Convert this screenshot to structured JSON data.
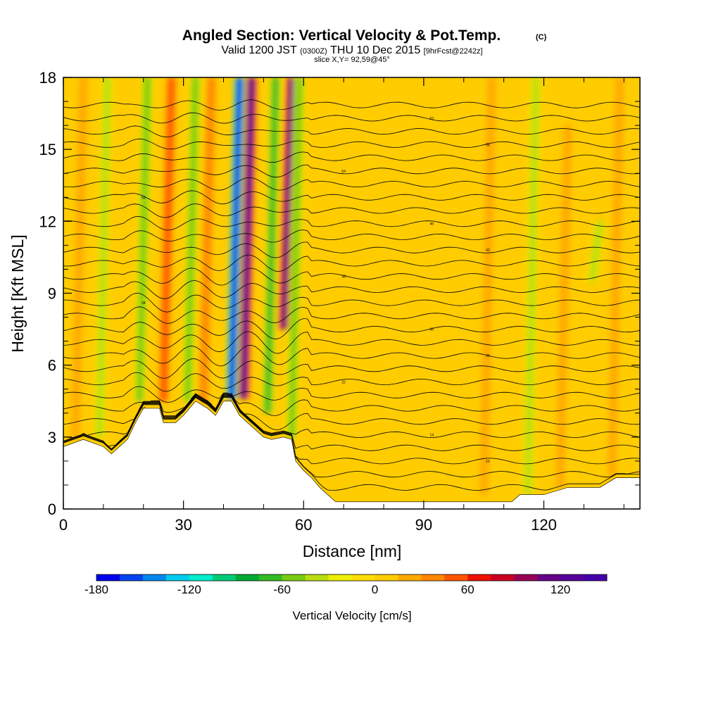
{
  "header": {
    "title": "Angled Section: Vertical Velocity & Pot.Temp.",
    "copyright": "(C)",
    "valid_prefix": "Valid 1200 JST",
    "valid_utc": "(0300Z)",
    "valid_date": "THU 10 Dec 2015",
    "forecast": "[9hrFcst@2242z]",
    "slice": "slice X,Y= 92,59@45°"
  },
  "chart_data": {
    "type": "heatmap",
    "xlabel": "Distance [nm]",
    "ylabel": "Height [Kft MSL]",
    "xlim": [
      0,
      144
    ],
    "ylim": [
      0,
      18
    ],
    "x_ticks": [
      "0",
      "30",
      "60",
      "90",
      "120"
    ],
    "x_tick_values": [
      0,
      30,
      60,
      90,
      120
    ],
    "y_ticks": [
      "0",
      "3",
      "6",
      "9",
      "12",
      "15",
      "18"
    ],
    "y_tick_values": [
      0,
      3,
      6,
      9,
      12,
      15,
      18
    ],
    "colorbar": {
      "label": "Vertical Velocity [cm/s]",
      "tick_labels": [
        "-180",
        "-120",
        "-60",
        "0",
        "60",
        "120"
      ],
      "tick_values": [
        -180,
        -120,
        -60,
        0,
        60,
        120
      ],
      "range": [
        -180,
        150
      ],
      "step": 15,
      "colors": [
        "#0000ee",
        "#0044ee",
        "#0088ee",
        "#00ccee",
        "#00eecc",
        "#00cc77",
        "#00aa33",
        "#33bb22",
        "#77cc11",
        "#bbdd11",
        "#eeee00",
        "#ffdd00",
        "#ffcc00",
        "#ffaa00",
        "#ff8800",
        "#ff5500",
        "#ee1100",
        "#cc0022",
        "#990055",
        "#660088",
        "#550099",
        "#4400aa"
      ]
    },
    "terrain_kft": [
      [
        0,
        2.6
      ],
      [
        5,
        2.9
      ],
      [
        10,
        2.6
      ],
      [
        12,
        2.3
      ],
      [
        14,
        2.6
      ],
      [
        16,
        2.9
      ],
      [
        18,
        3.6
      ],
      [
        20,
        4.2
      ],
      [
        24,
        4.2
      ],
      [
        25,
        3.6
      ],
      [
        26,
        3.6
      ],
      [
        28,
        3.6
      ],
      [
        30,
        3.9
      ],
      [
        33,
        4.5
      ],
      [
        36,
        4.2
      ],
      [
        38,
        3.9
      ],
      [
        40,
        4.5
      ],
      [
        42,
        4.5
      ],
      [
        44,
        3.9
      ],
      [
        46,
        3.6
      ],
      [
        48,
        3.3
      ],
      [
        50,
        3.0
      ],
      [
        52,
        2.9
      ],
      [
        55,
        3.0
      ],
      [
        57,
        2.9
      ],
      [
        58,
        2.0
      ],
      [
        60,
        1.6
      ],
      [
        62,
        1.3
      ],
      [
        64,
        0.9
      ],
      [
        66,
        0.6
      ],
      [
        68,
        0.3
      ],
      [
        70,
        0.3
      ],
      [
        80,
        0.3
      ],
      [
        90,
        0.3
      ],
      [
        100,
        0.3
      ],
      [
        112,
        0.3
      ],
      [
        114,
        0.6
      ],
      [
        120,
        0.6
      ],
      [
        126,
        0.9
      ],
      [
        134,
        0.9
      ],
      [
        138,
        1.3
      ],
      [
        144,
        1.3
      ]
    ],
    "updrafts": [
      {
        "x": 46,
        "z_low": 4.6,
        "z_high": 18,
        "peak": 120
      },
      {
        "x": 56,
        "z_low": 7.5,
        "z_high": 18,
        "peak": 110
      },
      {
        "x": 26,
        "z_low": 4.5,
        "z_high": 18,
        "peak": 45
      },
      {
        "x": 36,
        "z_low": 4.5,
        "z_high": 18,
        "peak": 40
      },
      {
        "x": 106,
        "z_low": 0.6,
        "z_high": 18,
        "peak": 25
      },
      {
        "x": 125,
        "z_low": 0.9,
        "z_high": 16,
        "peak": 20
      },
      {
        "x": 138,
        "z_low": 1.3,
        "z_high": 18,
        "peak": 20
      },
      {
        "x": 4,
        "z_low": 2.9,
        "z_high": 18,
        "peak": 15
      }
    ],
    "downdrafts": [
      {
        "x": 43,
        "z_low": 4.6,
        "z_high": 18,
        "peak": -170
      },
      {
        "x": 52,
        "z_low": 4.0,
        "z_high": 18,
        "peak": -60
      },
      {
        "x": 20,
        "z_low": 4.5,
        "z_high": 18,
        "peak": -55
      },
      {
        "x": 32,
        "z_low": 4.5,
        "z_high": 18,
        "peak": -55
      },
      {
        "x": 58,
        "z_low": 3.0,
        "z_high": 18,
        "peak": -50
      },
      {
        "x": 10,
        "z_low": 3.0,
        "z_high": 18,
        "peak": -30
      },
      {
        "x": 117,
        "z_low": 0.6,
        "z_high": 18,
        "peak": -35
      },
      {
        "x": 133,
        "z_low": 9.5,
        "z_high": 12.0,
        "peak": -40
      }
    ],
    "theta_contours": {
      "count": 30,
      "spacing_kft": 0.55,
      "labels": [
        "10",
        "14",
        "18",
        "22",
        "26",
        "30",
        "34",
        "38",
        "42",
        "46",
        "50",
        "54",
        "58",
        "62",
        "66",
        "70"
      ]
    }
  }
}
